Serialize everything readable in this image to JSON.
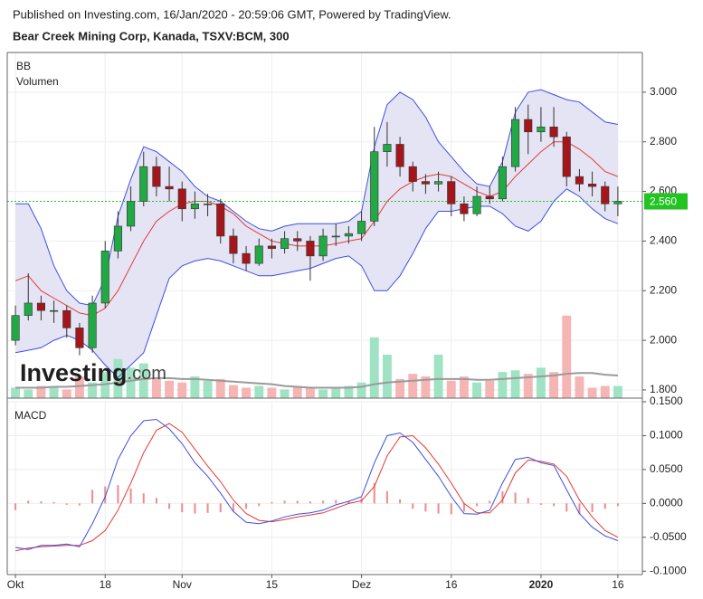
{
  "header": {
    "published": "Published on Investing.com, 16/Jan/2020 - 20:59:06 GMT, Powered by TradingView.",
    "title": "Bear Creek Mining Corp, Kanada, TSXV:BCM, 300"
  },
  "watermark": {
    "brand": "Investing",
    "suffix": ".com"
  },
  "chart_data": [
    {
      "type": "candlestick",
      "legend": [
        "BB",
        "Volumen"
      ],
      "open": [
        2.0,
        2.1,
        2.15,
        2.12,
        2.12,
        2.05,
        1.97,
        2.15,
        2.36,
        2.46,
        2.56,
        2.7,
        2.62,
        2.61,
        2.53,
        2.55,
        2.55,
        2.42,
        2.35,
        2.31,
        2.38,
        2.37,
        2.41,
        2.4,
        2.34,
        2.42,
        2.42,
        2.43,
        2.48,
        2.76,
        2.79,
        2.7,
        2.64,
        2.63,
        2.64,
        2.55,
        2.51,
        2.58,
        2.57,
        2.7,
        2.89,
        2.84,
        2.86,
        2.82,
        2.66,
        2.63,
        2.62,
        2.55
      ],
      "high": [
        2.14,
        2.27,
        2.18,
        2.16,
        2.14,
        2.07,
        2.18,
        2.4,
        2.52,
        2.62,
        2.76,
        2.74,
        2.7,
        2.64,
        2.6,
        2.59,
        2.57,
        2.45,
        2.38,
        2.41,
        2.41,
        2.44,
        2.44,
        2.42,
        2.45,
        2.47,
        2.46,
        2.52,
        2.86,
        2.88,
        2.82,
        2.72,
        2.67,
        2.68,
        2.66,
        2.58,
        2.62,
        2.62,
        2.74,
        2.94,
        2.95,
        2.94,
        2.94,
        2.84,
        2.69,
        2.68,
        2.64,
        2.62
      ],
      "low": [
        1.98,
        2.08,
        2.08,
        2.07,
        2.01,
        1.94,
        1.95,
        2.13,
        2.33,
        2.44,
        2.54,
        2.58,
        2.56,
        2.48,
        2.49,
        2.5,
        2.39,
        2.31,
        2.28,
        2.3,
        2.33,
        2.35,
        2.36,
        2.24,
        2.32,
        2.38,
        2.39,
        2.4,
        2.46,
        2.7,
        2.66,
        2.6,
        2.59,
        2.6,
        2.5,
        2.48,
        2.5,
        2.55,
        2.56,
        2.68,
        2.75,
        2.8,
        2.78,
        2.62,
        2.6,
        2.58,
        2.52,
        2.5
      ],
      "close": [
        2.1,
        2.15,
        2.12,
        2.12,
        2.05,
        1.97,
        2.15,
        2.36,
        2.46,
        2.56,
        2.7,
        2.62,
        2.61,
        2.53,
        2.55,
        2.55,
        2.42,
        2.35,
        2.31,
        2.38,
        2.37,
        2.41,
        2.4,
        2.34,
        2.42,
        2.42,
        2.43,
        2.48,
        2.76,
        2.79,
        2.7,
        2.64,
        2.63,
        2.64,
        2.55,
        2.51,
        2.58,
        2.57,
        2.7,
        2.89,
        2.84,
        2.86,
        2.82,
        2.66,
        2.63,
        2.62,
        2.55,
        2.56
      ],
      "up_color": "#22a845",
      "down_color": "#a3171c",
      "ylim": [
        1.767,
        3.16
      ],
      "yticks": [
        {
          "value": 1.8,
          "label": "1.800"
        },
        {
          "value": 2,
          "label": "2.000"
        },
        {
          "value": 2.2,
          "label": "2.200"
        },
        {
          "value": 2.4,
          "label": "2.400"
        },
        {
          "value": 2.6,
          "label": "2.600"
        },
        {
          "value": 2.8,
          "label": "2.800"
        },
        {
          "value": 3,
          "label": "3.000"
        }
      ],
      "grid": true,
      "last_price": {
        "value": 2.56,
        "label": "2.560",
        "color": "#22c322"
      },
      "bollinger": {
        "upper": [
          2.55,
          2.55,
          2.45,
          2.3,
          2.2,
          2.15,
          2.14,
          2.25,
          2.5,
          2.65,
          2.78,
          2.76,
          2.72,
          2.68,
          2.62,
          2.58,
          2.56,
          2.52,
          2.48,
          2.45,
          2.44,
          2.46,
          2.47,
          2.47,
          2.47,
          2.47,
          2.48,
          2.52,
          2.78,
          2.95,
          3.0,
          2.97,
          2.9,
          2.8,
          2.74,
          2.68,
          2.63,
          2.62,
          2.72,
          2.92,
          3.0,
          3.01,
          2.99,
          2.97,
          2.96,
          2.92,
          2.88,
          2.87
        ],
        "middle": [
          2.24,
          2.26,
          2.2,
          2.17,
          2.14,
          2.11,
          2.1,
          2.13,
          2.2,
          2.3,
          2.4,
          2.48,
          2.52,
          2.55,
          2.56,
          2.56,
          2.54,
          2.51,
          2.46,
          2.43,
          2.4,
          2.39,
          2.38,
          2.38,
          2.38,
          2.39,
          2.4,
          2.41,
          2.48,
          2.56,
          2.61,
          2.64,
          2.66,
          2.67,
          2.66,
          2.63,
          2.6,
          2.58,
          2.6,
          2.66,
          2.71,
          2.76,
          2.8,
          2.8,
          2.77,
          2.73,
          2.68,
          2.66
        ],
        "lower": [
          1.95,
          1.96,
          1.97,
          2.0,
          2.02,
          2.0,
          1.96,
          1.9,
          1.85,
          1.9,
          1.95,
          2.1,
          2.25,
          2.3,
          2.32,
          2.33,
          2.32,
          2.3,
          2.28,
          2.26,
          2.26,
          2.27,
          2.28,
          2.29,
          2.31,
          2.33,
          2.34,
          2.3,
          2.2,
          2.2,
          2.26,
          2.35,
          2.45,
          2.52,
          2.52,
          2.53,
          2.54,
          2.54,
          2.51,
          2.46,
          2.44,
          2.48,
          2.56,
          2.61,
          2.58,
          2.53,
          2.49,
          2.47
        ],
        "band_color": "#3d4fe0",
        "basis_color": "#e53935",
        "fill": "#e5e4f4"
      },
      "volume": {
        "values": [
          12,
          10,
          14,
          12,
          10,
          25,
          18,
          30,
          45,
          35,
          40,
          22,
          20,
          18,
          25,
          20,
          22,
          15,
          12,
          14,
          12,
          10,
          14,
          12,
          10,
          12,
          14,
          18,
          70,
          50,
          22,
          28,
          25,
          50,
          20,
          25,
          18,
          20,
          30,
          32,
          28,
          35,
          30,
          95,
          25,
          12,
          14,
          14
        ],
        "ma": [
          12,
          12,
          12,
          13,
          13,
          14,
          15,
          16,
          18,
          20,
          22,
          23,
          23,
          22,
          22,
          21,
          20,
          19,
          18,
          17,
          16,
          14,
          13,
          12,
          12,
          12,
          12,
          13,
          16,
          18,
          19,
          20,
          21,
          22,
          22,
          22,
          21,
          21,
          22,
          23,
          24,
          25,
          26,
          28,
          29,
          29,
          27,
          26
        ],
        "ylim": [
          0,
          100
        ],
        "up_color": "#9fe3c4",
        "down_color": "#f6b5b5",
        "ma_color": "#9a9a9a"
      }
    },
    {
      "type": "macd",
      "title": "MACD",
      "categories": [
        "Okt",
        null,
        null,
        null,
        null,
        null,
        null,
        "18",
        null,
        null,
        null,
        null,
        null,
        "Nov",
        null,
        null,
        null,
        null,
        null,
        null,
        "15",
        null,
        null,
        null,
        null,
        null,
        null,
        "Dez",
        null,
        null,
        null,
        null,
        null,
        null,
        "16",
        null,
        null,
        null,
        null,
        null,
        null,
        "2020",
        null,
        null,
        null,
        null,
        null,
        "16"
      ],
      "macd": [
        -0.065,
        -0.068,
        -0.062,
        -0.062,
        -0.06,
        -0.064,
        -0.03,
        0.01,
        0.065,
        0.1,
        0.122,
        0.124,
        0.11,
        0.088,
        0.06,
        0.04,
        0.015,
        -0.012,
        -0.028,
        -0.03,
        -0.026,
        -0.02,
        -0.016,
        -0.014,
        -0.01,
        -0.002,
        0.003,
        0.01,
        0.06,
        0.1,
        0.104,
        0.09,
        0.065,
        0.04,
        0.01,
        -0.015,
        -0.016,
        -0.01,
        0.03,
        0.065,
        0.068,
        0.06,
        0.056,
        0.02,
        -0.015,
        -0.035,
        -0.048,
        -0.055
      ],
      "signal": [
        -0.07,
        -0.066,
        -0.064,
        -0.063,
        -0.062,
        -0.062,
        -0.055,
        -0.04,
        -0.01,
        0.03,
        0.075,
        0.108,
        0.118,
        0.105,
        0.08,
        0.055,
        0.032,
        0.005,
        -0.015,
        -0.025,
        -0.027,
        -0.024,
        -0.02,
        -0.017,
        -0.014,
        -0.007,
        0.0,
        0.004,
        0.025,
        0.07,
        0.098,
        0.1,
        0.082,
        0.058,
        0.03,
        0.0,
        -0.014,
        -0.014,
        0.005,
        0.045,
        0.064,
        0.062,
        0.058,
        0.04,
        0.005,
        -0.02,
        -0.04,
        -0.05
      ],
      "histogram": [
        -0.01,
        0.004,
        0.003,
        0.002,
        -0.002,
        -0.003,
        0.02,
        0.025,
        0.027,
        0.022,
        0.015,
        0.008,
        -0.008,
        -0.013,
        -0.015,
        -0.014,
        -0.013,
        -0.012,
        -0.008,
        -0.004,
        0.002,
        0.004,
        0.004,
        0.003,
        0.004,
        0.005,
        0.004,
        0.008,
        0.03,
        0.018,
        0.006,
        -0.008,
        -0.012,
        -0.015,
        -0.016,
        -0.012,
        -0.004,
        0.004,
        0.018,
        0.016,
        0.008,
        -0.002,
        -0.004,
        -0.012,
        -0.016,
        -0.013,
        -0.008,
        -0.004
      ],
      "macd_color": "#3d4fe0",
      "signal_color": "#e53935",
      "histogram_color": "#f08a8a",
      "ylim": [
        -0.105,
        0.15
      ],
      "yticks": [
        {
          "value": -0.1,
          "label": "-0.1000"
        },
        {
          "value": -0.05,
          "label": "-0.0500"
        },
        {
          "value": 0,
          "label": "0.0000"
        },
        {
          "value": 0.05,
          "label": "0.0500"
        },
        {
          "value": 0.1,
          "label": "0.1000"
        },
        {
          "value": 0.15,
          "label": "0.1500"
        }
      ],
      "grid": true
    }
  ]
}
